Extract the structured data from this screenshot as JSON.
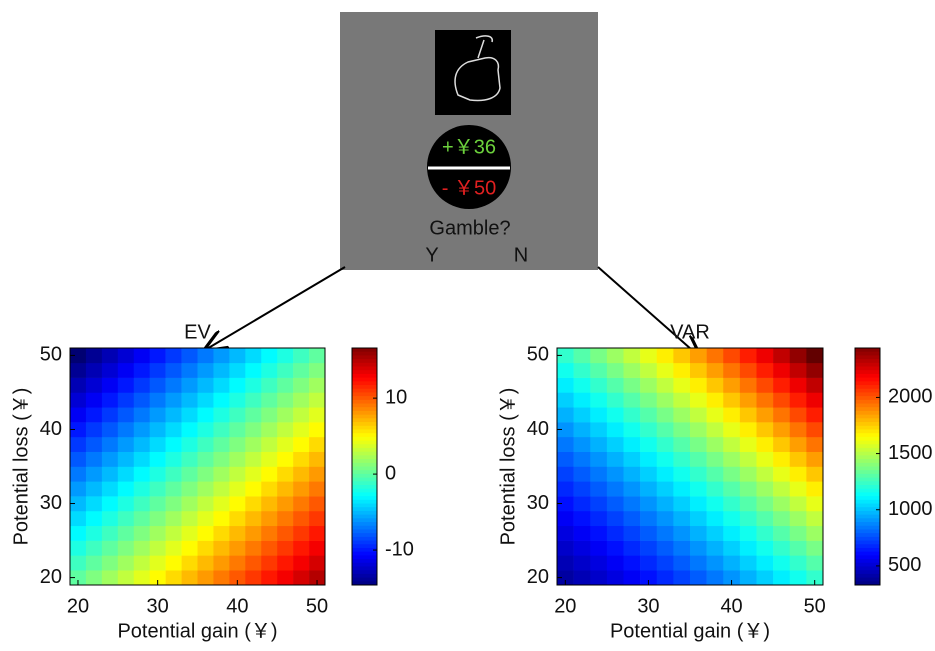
{
  "stimulus": {
    "gain_label": "+￥36",
    "loss_label": "- ￥50",
    "question": "Gamble?",
    "options": [
      "Y",
      "N"
    ]
  },
  "chart_data": [
    {
      "type": "heatmap",
      "title": "EV",
      "xlabel": "Potential gain (￥)",
      "ylabel": "Potential loss (￥)",
      "x": [
        20,
        22,
        24,
        26,
        28,
        30,
        32,
        34,
        36,
        38,
        40,
        42,
        44,
        46,
        48,
        50
      ],
      "y": [
        20,
        22,
        24,
        26,
        28,
        30,
        32,
        34,
        36,
        38,
        40,
        42,
        44,
        46,
        48,
        50
      ],
      "z": [
        [
          0,
          1,
          2,
          3,
          4,
          5,
          6,
          7,
          8,
          9,
          10,
          11,
          12,
          13,
          14,
          15
        ],
        [
          -1,
          0,
          1,
          2,
          3,
          4,
          5,
          6,
          7,
          8,
          9,
          10,
          11,
          12,
          13,
          14
        ],
        [
          -2,
          -1,
          0,
          1,
          2,
          3,
          4,
          5,
          6,
          7,
          8,
          9,
          10,
          11,
          12,
          13
        ],
        [
          -3,
          -2,
          -1,
          0,
          1,
          2,
          3,
          4,
          5,
          6,
          7,
          8,
          9,
          10,
          11,
          12
        ],
        [
          -4,
          -3,
          -2,
          -1,
          0,
          1,
          2,
          3,
          4,
          5,
          6,
          7,
          8,
          9,
          10,
          11
        ],
        [
          -5,
          -4,
          -3,
          -2,
          -1,
          0,
          1,
          2,
          3,
          4,
          5,
          6,
          7,
          8,
          9,
          10
        ],
        [
          -6,
          -5,
          -4,
          -3,
          -2,
          -1,
          0,
          1,
          2,
          3,
          4,
          5,
          6,
          7,
          8,
          9
        ],
        [
          -7,
          -6,
          -5,
          -4,
          -3,
          -2,
          -1,
          0,
          1,
          2,
          3,
          4,
          5,
          6,
          7,
          8
        ],
        [
          -8,
          -7,
          -6,
          -5,
          -4,
          -3,
          -2,
          -1,
          0,
          1,
          2,
          3,
          4,
          5,
          6,
          7
        ],
        [
          -9,
          -8,
          -7,
          -6,
          -5,
          -4,
          -3,
          -2,
          -1,
          0,
          1,
          2,
          3,
          4,
          5,
          6
        ],
        [
          -10,
          -9,
          -8,
          -7,
          -6,
          -5,
          -4,
          -3,
          -2,
          -1,
          0,
          1,
          2,
          3,
          4,
          5
        ],
        [
          -11,
          -10,
          -9,
          -8,
          -7,
          -6,
          -5,
          -4,
          -3,
          -2,
          -1,
          0,
          1,
          2,
          3,
          4
        ],
        [
          -12,
          -11,
          -10,
          -9,
          -8,
          -7,
          -6,
          -5,
          -4,
          -3,
          -2,
          -1,
          0,
          1,
          2,
          3
        ],
        [
          -13,
          -12,
          -11,
          -10,
          -9,
          -8,
          -7,
          -6,
          -5,
          -4,
          -3,
          -2,
          -1,
          0,
          1,
          2
        ],
        [
          -14,
          -13,
          -12,
          -11,
          -10,
          -9,
          -8,
          -7,
          -6,
          -5,
          -4,
          -3,
          -2,
          -1,
          0,
          1
        ],
        [
          -15,
          -14,
          -13,
          -12,
          -11,
          -10,
          -9,
          -8,
          -7,
          -6,
          -5,
          -4,
          -3,
          -2,
          -1,
          0
        ]
      ],
      "xlim": [
        19,
        51
      ],
      "ylim": [
        19,
        51
      ],
      "xticks": [
        20,
        30,
        40,
        50
      ],
      "yticks": [
        20,
        30,
        40,
        50
      ],
      "colormap": "jet",
      "clim": [
        -14.6,
        16.6
      ],
      "cticks": [
        -10,
        0,
        10
      ]
    },
    {
      "type": "heatmap",
      "title": "VAR",
      "xlabel": "Potential gain (￥)",
      "ylabel": "Potential loss (￥)",
      "x": [
        20,
        22,
        24,
        26,
        28,
        30,
        32,
        34,
        36,
        38,
        40,
        42,
        44,
        46,
        48,
        50
      ],
      "y": [
        20,
        22,
        24,
        26,
        28,
        30,
        32,
        34,
        36,
        38,
        40,
        42,
        44,
        46,
        48,
        50
      ],
      "z": [
        [
          400,
          441,
          484,
          529,
          576,
          625,
          676,
          729,
          784,
          841,
          900,
          961,
          1024,
          1089,
          1156,
          1225
        ],
        [
          441,
          484,
          529,
          576,
          625,
          676,
          729,
          784,
          841,
          900,
          961,
          1024,
          1089,
          1156,
          1225,
          1296
        ],
        [
          484,
          529,
          576,
          625,
          676,
          729,
          784,
          841,
          900,
          961,
          1024,
          1089,
          1156,
          1225,
          1296,
          1369
        ],
        [
          529,
          576,
          625,
          676,
          729,
          784,
          841,
          900,
          961,
          1024,
          1089,
          1156,
          1225,
          1296,
          1369,
          1444
        ],
        [
          576,
          625,
          676,
          729,
          784,
          841,
          900,
          961,
          1024,
          1089,
          1156,
          1225,
          1296,
          1369,
          1444,
          1521
        ],
        [
          625,
          676,
          729,
          784,
          841,
          900,
          961,
          1024,
          1089,
          1156,
          1225,
          1296,
          1369,
          1444,
          1521,
          1600
        ],
        [
          676,
          729,
          784,
          841,
          900,
          961,
          1024,
          1089,
          1156,
          1225,
          1296,
          1369,
          1444,
          1521,
          1600,
          1681
        ],
        [
          729,
          784,
          841,
          900,
          961,
          1024,
          1089,
          1156,
          1225,
          1296,
          1369,
          1444,
          1521,
          1600,
          1681,
          1764
        ],
        [
          784,
          841,
          900,
          961,
          1024,
          1089,
          1156,
          1225,
          1296,
          1369,
          1444,
          1521,
          1600,
          1681,
          1764,
          1849
        ],
        [
          841,
          900,
          961,
          1024,
          1089,
          1156,
          1225,
          1296,
          1369,
          1444,
          1521,
          1600,
          1681,
          1764,
          1849,
          1936
        ],
        [
          900,
          961,
          1024,
          1089,
          1156,
          1225,
          1296,
          1369,
          1444,
          1521,
          1600,
          1681,
          1764,
          1849,
          1936,
          2025
        ],
        [
          961,
          1024,
          1089,
          1156,
          1225,
          1296,
          1369,
          1444,
          1521,
          1600,
          1681,
          1764,
          1849,
          1936,
          2025,
          2116
        ],
        [
          1024,
          1089,
          1156,
          1225,
          1296,
          1369,
          1444,
          1521,
          1600,
          1681,
          1764,
          1849,
          1936,
          2025,
          2116,
          2209
        ],
        [
          1089,
          1156,
          1225,
          1296,
          1369,
          1444,
          1521,
          1600,
          1681,
          1764,
          1849,
          1936,
          2025,
          2116,
          2209,
          2304
        ],
        [
          1156,
          1225,
          1296,
          1369,
          1444,
          1521,
          1600,
          1681,
          1764,
          1849,
          1936,
          2025,
          2116,
          2209,
          2304,
          2401
        ],
        [
          1225,
          1296,
          1369,
          1444,
          1521,
          1600,
          1681,
          1764,
          1849,
          1936,
          2025,
          2116,
          2209,
          2304,
          2401,
          2500
        ]
      ],
      "xlim": [
        19,
        51
      ],
      "ylim": [
        19,
        51
      ],
      "xticks": [
        20,
        30,
        40,
        50
      ],
      "yticks": [
        20,
        30,
        40,
        50
      ],
      "colormap": "jet",
      "clim": [
        330,
        2440
      ],
      "cticks": [
        500,
        1000,
        1500,
        2000
      ]
    }
  ]
}
